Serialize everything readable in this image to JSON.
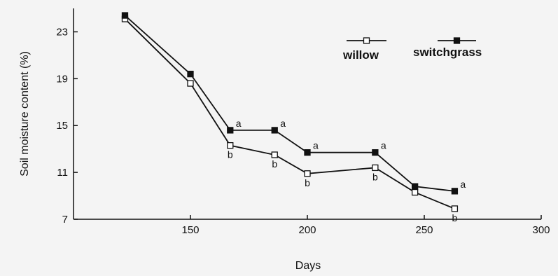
{
  "chart_data": {
    "type": "line",
    "xlabel": "Days",
    "ylabel": "Soil moisture content (%)",
    "xlim": [
      100,
      300
    ],
    "ylim": [
      7,
      25
    ],
    "xticks": [
      150,
      200,
      250,
      300
    ],
    "yticks": [
      7,
      11,
      15,
      19,
      23
    ],
    "legend_position": "top-right",
    "grid": false,
    "series": [
      {
        "name": "willow",
        "marker": "open-square",
        "color": "#111111",
        "x": [
          122,
          150,
          167,
          186,
          200,
          229,
          246,
          263
        ],
        "y": [
          24.1,
          18.6,
          13.3,
          12.5,
          10.9,
          11.4,
          9.3,
          7.9
        ],
        "labels": [
          "",
          "",
          "b",
          "b",
          "b",
          "b",
          "",
          "b"
        ]
      },
      {
        "name": "switchgrass",
        "marker": "filled-square",
        "color": "#111111",
        "x": [
          122,
          150,
          167,
          186,
          200,
          229,
          246,
          263
        ],
        "y": [
          24.4,
          19.4,
          14.6,
          14.6,
          12.7,
          12.7,
          9.8,
          9.4
        ],
        "labels": [
          "",
          "",
          "a",
          "a",
          "a",
          "a",
          "",
          "a"
        ]
      }
    ]
  }
}
